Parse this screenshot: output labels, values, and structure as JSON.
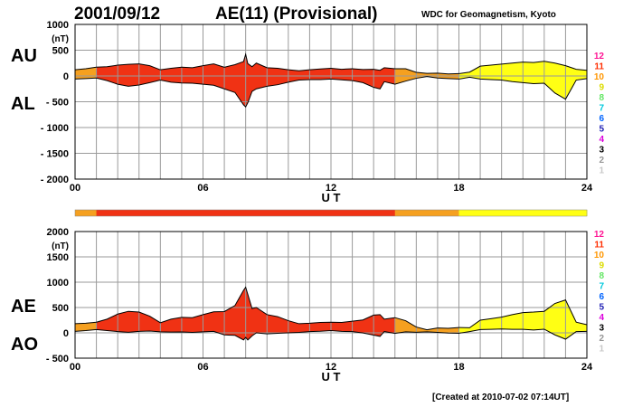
{
  "header": {
    "date": "2001/09/12",
    "index_title": "AE(11) (Provisional)",
    "credit": "WDC for Geomagnetism, Kyoto"
  },
  "footer": {
    "created": "[Created at 2010-07-02 07:14UT]"
  },
  "colors": {
    "kp_scale": [
      "#c8c8c8",
      "#969696",
      "#000000",
      "#dc00dc",
      "#2020b4",
      "#0064ff",
      "#00c8dc",
      "#64e664",
      "#dcdc00",
      "#ff9600",
      "#ff2d00",
      "#ff1493"
    ],
    "bar_palette": {
      "10": "#f5a020",
      "11": "#f03214",
      "9": "#ffff14"
    }
  },
  "chart_data": [
    {
      "type": "area",
      "name": "AU/AL",
      "upper_label": "AU",
      "lower_label": "AL",
      "unit": "(nT)",
      "xlabel": "U T",
      "ylim": [
        -2000,
        1000
      ],
      "yticks": [
        1000,
        500,
        0,
        -500,
        -1000,
        -1500,
        -2000
      ],
      "xticks": [
        "00",
        "06",
        "12",
        "18",
        "24"
      ],
      "x_hours": [
        0,
        0.5,
        1,
        1.5,
        2,
        2.5,
        3,
        3.5,
        4,
        4.5,
        5,
        5.5,
        6,
        6.5,
        7,
        7.5,
        7.9,
        8,
        8.1,
        8.3,
        8.5,
        9,
        9.5,
        10,
        10.5,
        11,
        11.5,
        12,
        12.5,
        13,
        13.5,
        14,
        14.3,
        14.5,
        15,
        15.5,
        16,
        16.5,
        17,
        17.5,
        18,
        18.5,
        19,
        19.5,
        20,
        20.5,
        21,
        21.5,
        22,
        22.5,
        23,
        23.5,
        24
      ],
      "series": [
        {
          "name": "AU",
          "values": [
            120,
            140,
            170,
            180,
            210,
            225,
            235,
            200,
            120,
            150,
            170,
            160,
            200,
            235,
            170,
            220,
            280,
            420,
            240,
            180,
            250,
            160,
            150,
            120,
            100,
            120,
            135,
            150,
            130,
            140,
            125,
            130,
            110,
            160,
            140,
            140,
            70,
            50,
            55,
            40,
            45,
            75,
            190,
            210,
            230,
            250,
            270,
            260,
            285,
            250,
            200,
            130,
            110
          ]
        },
        {
          "name": "AL",
          "values": [
            -60,
            -50,
            -40,
            -90,
            -160,
            -200,
            -175,
            -130,
            -80,
            -120,
            -135,
            -140,
            -160,
            -180,
            -250,
            -320,
            -560,
            -600,
            -520,
            -300,
            -250,
            -200,
            -170,
            -120,
            -80,
            -70,
            -70,
            -60,
            -75,
            -90,
            -130,
            -220,
            -250,
            -110,
            -160,
            -100,
            -45,
            -10,
            -40,
            -50,
            -60,
            -25,
            -60,
            -70,
            -80,
            -110,
            -130,
            -150,
            -140,
            -330,
            -450,
            -80,
            -50
          ]
        }
      ],
      "ae11_by_hour": [
        10,
        11,
        11,
        11,
        11,
        11,
        11,
        11,
        11,
        11,
        11,
        11,
        11,
        11,
        11,
        10,
        10,
        10,
        9,
        9,
        9,
        9,
        9,
        9
      ]
    },
    {
      "type": "area",
      "name": "AE/AO",
      "upper_label": "AE",
      "lower_label": "AO",
      "unit": "(nT)",
      "xlabel": "U T",
      "ylim": [
        -500,
        2000
      ],
      "yticks": [
        2000,
        1500,
        1000,
        500,
        0,
        -500
      ],
      "xticks": [
        "00",
        "06",
        "12",
        "18",
        "24"
      ],
      "series": [
        {
          "name": "AE",
          "values": [
            180,
            190,
            210,
            270,
            370,
            425,
            410,
            330,
            200,
            270,
            305,
            300,
            360,
            415,
            420,
            540,
            840,
            900,
            760,
            480,
            500,
            360,
            320,
            240,
            180,
            190,
            205,
            210,
            205,
            230,
            255,
            350,
            360,
            270,
            300,
            240,
            115,
            60,
            95,
            90,
            105,
            100,
            250,
            280,
            310,
            360,
            400,
            410,
            425,
            580,
            650,
            210,
            160
          ]
        },
        {
          "name": "AO",
          "values": [
            30,
            45,
            65,
            45,
            25,
            12,
            30,
            35,
            20,
            15,
            17,
            10,
            20,
            28,
            -40,
            -50,
            -140,
            -90,
            -140,
            -60,
            0,
            -20,
            -10,
            0,
            10,
            25,
            32,
            45,
            28,
            25,
            -3,
            -45,
            -70,
            25,
            -10,
            20,
            12,
            20,
            8,
            -5,
            -8,
            25,
            65,
            70,
            75,
            70,
            70,
            55,
            72,
            -40,
            -125,
            25,
            30
          ]
        }
      ]
    }
  ],
  "kp_labels": [
    "12",
    "11",
    "10",
    "9",
    "8",
    "7",
    "6",
    "5",
    "4",
    "3",
    "2",
    "1"
  ],
  "color_bar": {
    "segments_by_hour": [
      10,
      11,
      11,
      11,
      11,
      11,
      11,
      11,
      11,
      11,
      11,
      11,
      11,
      11,
      11,
      10,
      10,
      10,
      9,
      9,
      9,
      9,
      9,
      9
    ]
  }
}
